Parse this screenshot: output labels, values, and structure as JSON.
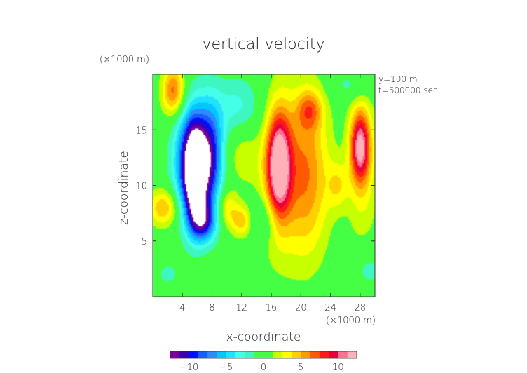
{
  "chart_data": {
    "type": "heatmap",
    "title": "vertical velocity",
    "xlabel": "x-coordinate",
    "ylabel": "z-coordinate",
    "x_unit": "(×1000 m)",
    "y_unit": "(×1000 m)",
    "annotations": [
      "y=100 m",
      "t=600000 sec"
    ],
    "xlim": [
      0,
      30
    ],
    "ylim": [
      0,
      20
    ],
    "x_ticks": [
      4,
      8,
      12,
      16,
      20,
      24,
      28
    ],
    "x_tick_labels": [
      "4",
      "8",
      "12",
      "16",
      "20",
      "24",
      "28"
    ],
    "y_ticks": [
      5,
      10,
      15
    ],
    "y_tick_labels": [
      "5",
      "10",
      "15"
    ],
    "colorbar": {
      "range": [
        -12.5,
        12.5
      ],
      "ticks": [
        -10,
        -5,
        0,
        5,
        10
      ],
      "tick_labels": [
        "−10",
        "−5",
        "0",
        "5",
        "10"
      ],
      "colors": [
        "#7a009c",
        "#3a00b4",
        "#0010ff",
        "#1a5aff",
        "#2a8cff",
        "#00c8ff",
        "#22e0ff",
        "#44ffe8",
        "#3ef7c0",
        "#44ff44",
        "#44ff44",
        "#c8ff00",
        "#ffff00",
        "#ffd000",
        "#ff9a00",
        "#ff5a00",
        "#ff1a1a",
        "#e8003a",
        "#ff6f8f",
        "#ffb0b8"
      ]
    },
    "background_value": 0,
    "field_features": [
      {
        "kind": "downdraft",
        "x": 5.7,
        "z": 11.0,
        "value": -13.0,
        "sx": 1.0,
        "sz": 2.9,
        "note": "white tongue, values below colorbar range"
      },
      {
        "kind": "downdraft",
        "x": 5.1,
        "z": 12.2,
        "value": -9.0,
        "sx": 1.6,
        "sz": 3.6
      },
      {
        "kind": "downdraft",
        "x": 7.8,
        "z": 12.5,
        "value": -9.0,
        "sx": 1.2,
        "sz": 3.3
      },
      {
        "kind": "downdraft",
        "x": 6.8,
        "z": 6.8,
        "value": -8.0,
        "sx": 1.2,
        "sz": 1.3
      },
      {
        "kind": "downdraft",
        "x": 11.5,
        "z": 17.0,
        "value": -3.0,
        "sx": 2.5,
        "sz": 2.0
      },
      {
        "kind": "downdraft",
        "x": 15.0,
        "z": 7.0,
        "value": -3.0,
        "sx": 1.5,
        "sz": 1.5
      },
      {
        "kind": "updraft",
        "x": 17.0,
        "z": 11.8,
        "value": 11.5,
        "sx": 1.1,
        "sz": 3.2
      },
      {
        "kind": "updraft",
        "x": 17.1,
        "z": 11.0,
        "value": 3.5,
        "sx": 2.3,
        "sz": 5.5
      },
      {
        "kind": "updraft",
        "x": 21.0,
        "z": 11.0,
        "value": 5.5,
        "sx": 2.1,
        "sz": 5.2
      },
      {
        "kind": "updraft",
        "x": 21.2,
        "z": 16.8,
        "value": 4.5,
        "sx": 1.2,
        "sz": 1.2
      },
      {
        "kind": "updraft",
        "x": 28.0,
        "z": 13.5,
        "value": 10.0,
        "sx": 0.9,
        "sz": 2.2
      },
      {
        "kind": "updraft",
        "x": 28.3,
        "z": 11.5,
        "value": 3.0,
        "sx": 1.5,
        "sz": 5.0
      },
      {
        "kind": "updraft",
        "x": 2.8,
        "z": 18.5,
        "value": 7.0,
        "sx": 1.1,
        "sz": 1.6
      },
      {
        "kind": "updraft",
        "x": 1.5,
        "z": 8.0,
        "value": 5.0,
        "sx": 1.5,
        "sz": 1.2
      },
      {
        "kind": "updraft",
        "x": 12.0,
        "z": 6.8,
        "value": 4.5,
        "sx": 1.0,
        "sz": 1.0
      },
      {
        "kind": "updraft",
        "x": 10.0,
        "z": 8.0,
        "value": 3.5,
        "sx": 1.0,
        "sz": 1.2
      },
      {
        "kind": "updraft",
        "x": 25.0,
        "z": 10.0,
        "value": 3.0,
        "sx": 1.0,
        "sz": 1.5
      },
      {
        "kind": "updraft",
        "x": 12.0,
        "z": 13.0,
        "value": 2.0,
        "sx": 1.5,
        "sz": 2.0
      },
      {
        "kind": "downdraft",
        "x": 29.0,
        "z": 2.5,
        "value": -2.0,
        "sx": 1.5,
        "sz": 1.5
      },
      {
        "kind": "downdraft",
        "x": 2.0,
        "z": 2.0,
        "value": -1.5,
        "sx": 1.5,
        "sz": 1.0
      },
      {
        "kind": "downdraft",
        "x": 27.0,
        "z": 19.0,
        "value": -2.0,
        "sx": 2.0,
        "sz": 1.0
      }
    ]
  }
}
